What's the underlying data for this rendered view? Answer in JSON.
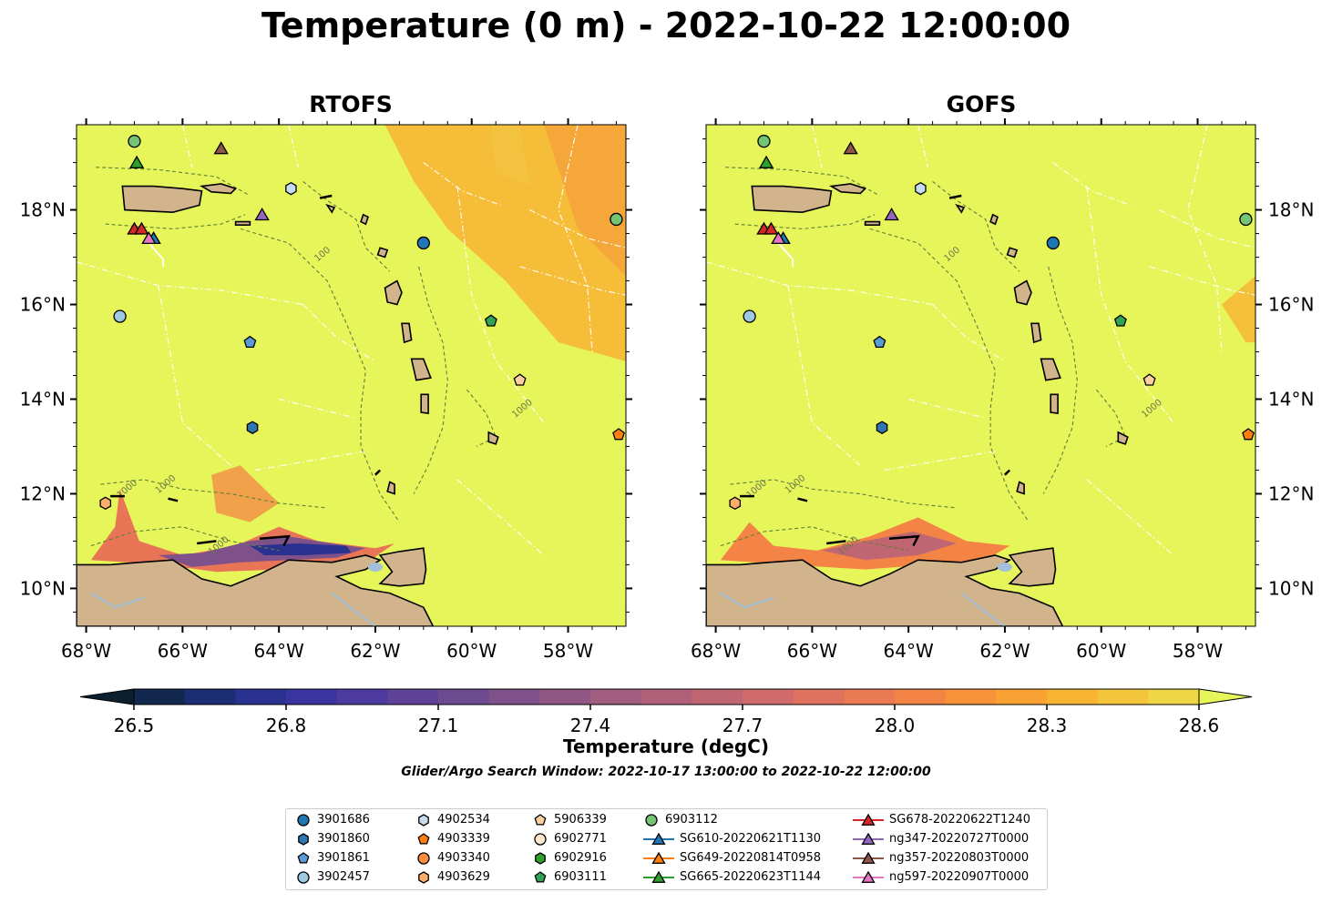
{
  "title": "Temperature (0 m) - 2022-10-22 12:00:00",
  "panels": [
    {
      "title": "RTOFS"
    },
    {
      "title": "GOFS"
    }
  ],
  "map_extent": {
    "lon": [
      -68.2,
      -56.8
    ],
    "lat": [
      9.2,
      19.8
    ]
  },
  "lon_ticks": [
    "68°W",
    "66°W",
    "64°W",
    "62°W",
    "60°W",
    "58°W"
  ],
  "lat_ticks": [
    "10°N",
    "12°N",
    "14°N",
    "16°N",
    "18°N"
  ],
  "contour_labels": [
    "100",
    "1000"
  ],
  "colorbar": {
    "label": "Temperature (degC)",
    "ticks": [
      "26.5",
      "26.8",
      "27.1",
      "27.4",
      "27.7",
      "28.0",
      "28.3",
      "28.6"
    ],
    "range": [
      26.5,
      28.6
    ],
    "colors": [
      "#0b1f2e",
      "#12284f",
      "#1b2e73",
      "#2a3290",
      "#3b34a0",
      "#4d3a9e",
      "#5e4297",
      "#6e4a90",
      "#7f518a",
      "#905785",
      "#a05d80",
      "#b0617a",
      "#c06673",
      "#cf6b6a",
      "#de725e",
      "#ea7a52",
      "#f38445",
      "#f89239",
      "#faa233",
      "#f8b332",
      "#f3c53a",
      "#eed647",
      "#e6f55a"
    ]
  },
  "search_window": "Glider/Argo Search Window: 2022-10-17 13:00:00 to 2022-10-22 12:00:00",
  "colors": {
    "land": "#d2b48c",
    "ocean": "#e6f55a",
    "lake": "#a3bfd9"
  },
  "legend": [
    {
      "label": "3901686",
      "marker": "circle",
      "color": "#1f77b4"
    },
    {
      "label": "3901860",
      "marker": "hexagon",
      "color": "#2f75b0"
    },
    {
      "label": "3901861",
      "marker": "pentagon",
      "color": "#5b9bd5"
    },
    {
      "label": "3902457",
      "marker": "circle",
      "color": "#9ecae1"
    },
    {
      "label": "4902534",
      "marker": "hexagon",
      "color": "#c6dbef"
    },
    {
      "label": "4903339",
      "marker": "pentagon",
      "color": "#ff7f0e"
    },
    {
      "label": "4903340",
      "marker": "circle",
      "color": "#fd8d3c"
    },
    {
      "label": "4903629",
      "marker": "hexagon",
      "color": "#fdae6b"
    },
    {
      "label": "5906339",
      "marker": "pentagon",
      "color": "#fdd0a2"
    },
    {
      "label": "6902771",
      "marker": "circle",
      "color": "#fee6ce"
    },
    {
      "label": "6902916",
      "marker": "hexagon",
      "color": "#2ca02c"
    },
    {
      "label": "6903111",
      "marker": "pentagon",
      "color": "#31a354"
    },
    {
      "label": "6903112",
      "marker": "circle",
      "color": "#74c476"
    },
    {
      "label": "SG610-20220621T1130",
      "marker": "triangle",
      "color": "#1f77b4",
      "line": true
    },
    {
      "label": "SG649-20220814T0958",
      "marker": "triangle",
      "color": "#ff7f0e",
      "line": true
    },
    {
      "label": "SG665-20220623T1144",
      "marker": "triangle",
      "color": "#2ca02c",
      "line": true
    },
    {
      "label": "SG678-20220622T1240",
      "marker": "triangle",
      "color": "#d62728",
      "line": true
    },
    {
      "label": "ng347-20220727T0000",
      "marker": "triangle",
      "color": "#9467bd",
      "line": true
    },
    {
      "label": "ng357-20220803T0000",
      "marker": "triangle",
      "color": "#8c564b",
      "line": true
    },
    {
      "label": "ng597-20220907T0000",
      "marker": "triangle",
      "color": "#e377c2",
      "line": true
    }
  ],
  "observations": [
    {
      "id": "3901686",
      "lon": -61.0,
      "lat": 17.3
    },
    {
      "id": "3901860",
      "lon": -64.55,
      "lat": 13.4
    },
    {
      "id": "3901861",
      "lon": -64.6,
      "lat": 15.2
    },
    {
      "id": "3902457",
      "lon": -67.3,
      "lat": 15.75
    },
    {
      "id": "4902534",
      "lon": -63.75,
      "lat": 18.45
    },
    {
      "id": "4903339",
      "lon": -56.95,
      "lat": 13.25
    },
    {
      "id": "4903629",
      "lon": -67.6,
      "lat": 11.8
    },
    {
      "id": "5906339",
      "lon": -59.0,
      "lat": 14.4
    },
    {
      "id": "6903111",
      "lon": -59.6,
      "lat": 15.65
    },
    {
      "id": "6903112",
      "lon": -57.0,
      "lat": 17.8
    },
    {
      "id": "6903112",
      "lon": -67.0,
      "lat": 19.45
    },
    {
      "id": "SG665-20220623T1144",
      "lon": -66.95,
      "lat": 19.0
    },
    {
      "id": "SG678-20220622T1240",
      "lon": -67.0,
      "lat": 17.6
    },
    {
      "id": "SG678-20220622T1240",
      "lon": -66.85,
      "lat": 17.6
    },
    {
      "id": "SG610-20220621T1130",
      "lon": -66.6,
      "lat": 17.4
    },
    {
      "id": "ng597-20220907T0000",
      "lon": -66.7,
      "lat": 17.4
    },
    {
      "id": "ng357-20220803T0000",
      "lon": -65.2,
      "lat": 19.3
    },
    {
      "id": "ng347-20220727T0000",
      "lon": -64.35,
      "lat": 17.9
    }
  ]
}
